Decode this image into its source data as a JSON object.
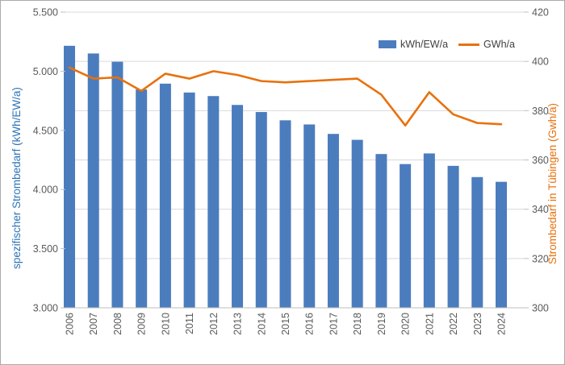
{
  "chart_data": {
    "type": "combo",
    "title": "",
    "categories": [
      "2006",
      "2007",
      "2008",
      "2009",
      "2010",
      "2011",
      "2012",
      "2013",
      "2014",
      "2015",
      "2016",
      "2017",
      "2018",
      "2019",
      "2020",
      "2021",
      "2022",
      "2023",
      "2024"
    ],
    "series": [
      {
        "name": "kWh/EW/a",
        "type": "bar",
        "axis": "left",
        "values": [
          5215,
          5150,
          5080,
          4845,
          4895,
          4820,
          4790,
          4715,
          4655,
          4585,
          4550,
          4470,
          4420,
          4300,
          4215,
          4305,
          4200,
          4105,
          4065
        ]
      },
      {
        "name": "GWh/a",
        "type": "line",
        "axis": "right",
        "values": [
          397.5,
          393,
          393.5,
          388,
          395,
          393,
          396,
          394.5,
          392,
          391.5,
          392,
          392.5,
          393,
          386.5,
          374,
          387.5,
          378.5,
          375,
          374.5
        ]
      }
    ],
    "left_axis": {
      "label": "spezifischer Strombedarf (kWh/EW/a)",
      "min": 3000,
      "max": 5500,
      "tick_labels": [
        "3.000",
        "3.500",
        "4.000",
        "4.500",
        "5.000",
        "5.500"
      ]
    },
    "right_axis": {
      "label": "Strombedarf in Tübingen (Gwh/a)",
      "min": 300,
      "max": 420,
      "tick_labels": [
        "300",
        "320",
        "340",
        "360",
        "380",
        "400",
        "420"
      ]
    },
    "legend_position": "top-right-inside",
    "grid": "horizontal major gridlines aligned to right axis (20 GWh steps)"
  },
  "colors": {
    "bar": "#4B7CBE",
    "line": "#E8710D",
    "left_axis_label": "#2E75B6",
    "right_axis_label": "#E8710D",
    "tick_text": "#595959",
    "grid": "#D9D9D9",
    "axis_line": "#BFBFBF",
    "legend_text": "#404040",
    "border": "#ABABAB",
    "background": "#FFFFFF"
  }
}
